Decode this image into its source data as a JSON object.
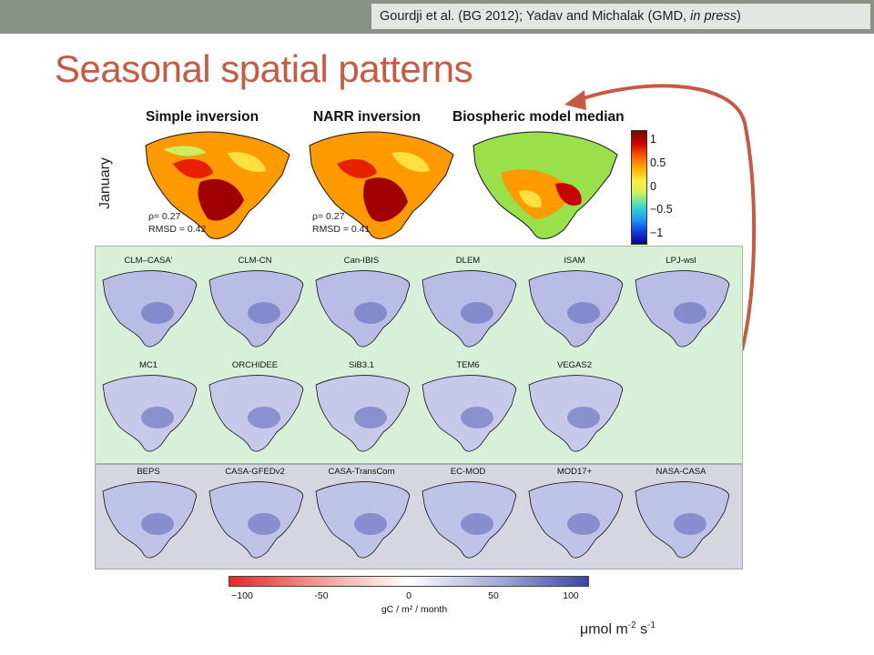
{
  "header": {
    "citation_prefix": "Gourdji et al. (BG 2012); Yadav and Michalak (GMD, ",
    "citation_italic": "in press",
    "citation_suffix": ")"
  },
  "slide_title": "Seasonal spatial patterns",
  "top_row": {
    "row_label": "January",
    "panels": [
      {
        "title": "Simple inversion",
        "rho": "ρ= 0.27",
        "rmsd": "RMSD = 0.42"
      },
      {
        "title": "NARR inversion",
        "rho": "ρ= 0.27",
        "rmsd": "RMSD = 0.41"
      },
      {
        "title": "Biospheric model median"
      }
    ],
    "colorbar": {
      "ticks": [
        "1",
        "0.5",
        "0",
        "−0.5",
        "−1"
      ],
      "colors": [
        "#7a0000",
        "#d40000",
        "#ff5a00",
        "#ffb000",
        "#ffee40",
        "#c8f060",
        "#40d8c8",
        "#20a0f0",
        "#1040e0",
        "#0a0090"
      ]
    },
    "unit": {
      "base": "μmol m",
      "exp1": "-2",
      "mid": " s",
      "exp2": "-1"
    }
  },
  "model_grid": {
    "green_rows": [
      [
        "CLM–CASA'",
        "CLM-CN",
        "Can-IBIS",
        "DLEM",
        "ISAM",
        "LPJ-wsl"
      ],
      [
        "MC1",
        "ORCHIDEE",
        "SiB3.1",
        "TEM6",
        "VEGAS2"
      ]
    ],
    "gray_rows": [
      [
        "BEPS",
        "CASA-GFEDv2",
        "CASA-TransCom",
        "EC-MOD",
        "MOD17+",
        "NASA-CASA"
      ]
    ]
  },
  "bottom_colorbar": {
    "ticks": [
      "−100",
      "-50",
      "0",
      "50",
      "100"
    ],
    "label": "gC / m² / month",
    "colors": [
      "#e8262a",
      "#f29a97",
      "#ffffff",
      "#a5a8d8",
      "#3a44a6"
    ]
  },
  "colors": {
    "title": "#c85a43",
    "arrow": "#c85a43",
    "topbar": "#8a9186",
    "green_panel": "#d8efd8",
    "gray_panel": "#d6d6e1"
  }
}
